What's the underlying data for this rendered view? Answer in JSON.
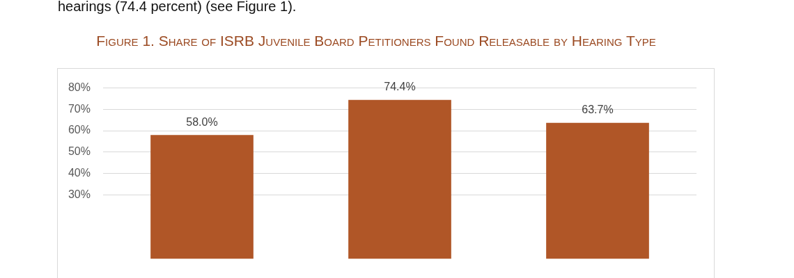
{
  "chart_data": {
    "type": "bar",
    "title": "Figure 1. Share of ISRB Juvenile Board Petitioners Found Releasable by Hearing Type",
    "annotations": [
      "hearings (74.4 percent) (see Figure 1)."
    ],
    "categories": [
      null,
      null,
      null
    ],
    "values": [
      58.0,
      74.4,
      63.7
    ],
    "value_labels": [
      "58.0%",
      "74.4%",
      "63.7%"
    ],
    "color": "#b05627",
    "ylim": [
      0,
      80
    ],
    "yticks": [
      {
        "value": 30,
        "label": "30%"
      },
      {
        "value": 40,
        "label": "40%"
      },
      {
        "value": 50,
        "label": "50%"
      },
      {
        "value": 60,
        "label": "60%"
      },
      {
        "value": 70,
        "label": "70%"
      },
      {
        "value": 80,
        "label": "80%"
      }
    ],
    "grid": "y",
    "legend": false
  }
}
